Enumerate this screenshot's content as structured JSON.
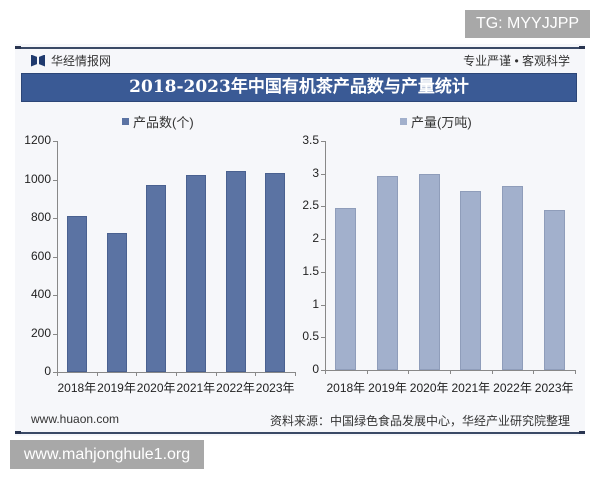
{
  "watermarks": {
    "top": "TG: MYYJJPP",
    "bottom": "www.mahjonghule1.org"
  },
  "header": {
    "brand": "华经情报网",
    "slogan": "专业严谨 • 客观科学"
  },
  "title": "2018-2023年中国有机茶产品数与产量统计",
  "footer": {
    "website": "www.huaon.com",
    "source": "资料来源：中国绿色食品发展中心，华经产业研究院整理"
  },
  "colors": {
    "banner": "#3a5a95",
    "left_bar": "#5b73a3",
    "right_bar": "#a2b0cc"
  },
  "chart_data": [
    {
      "type": "bar",
      "title": "",
      "legend": [
        "产品数(个)"
      ],
      "categories": [
        "2018年",
        "2019年",
        "2020年",
        "2021年",
        "2022年",
        "2023年"
      ],
      "series": [
        {
          "name": "产品数(个)",
          "values": [
            810,
            722,
            972,
            1022,
            1045,
            1033
          ]
        }
      ],
      "xlabel": "",
      "ylabel": "",
      "ylim": [
        0,
        1200
      ],
      "yticks": [
        "0",
        "200",
        "400",
        "600",
        "800",
        "1000",
        "1200"
      ],
      "grid": false,
      "legend_position": "top"
    },
    {
      "type": "bar",
      "title": "",
      "legend": [
        "产量(万吨)"
      ],
      "categories": [
        "2018年",
        "2019年",
        "2020年",
        "2021年",
        "2022年",
        "2023年"
      ],
      "series": [
        {
          "name": "产量(万吨)",
          "values": [
            2.47,
            2.96,
            2.99,
            2.74,
            2.81,
            2.45
          ]
        }
      ],
      "xlabel": "",
      "ylabel": "",
      "ylim": [
        0,
        3.5
      ],
      "yticks": [
        "0",
        "0.5",
        "1",
        "1.5",
        "2",
        "2.5",
        "3",
        "3.5"
      ],
      "grid": false,
      "legend_position": "top"
    }
  ]
}
